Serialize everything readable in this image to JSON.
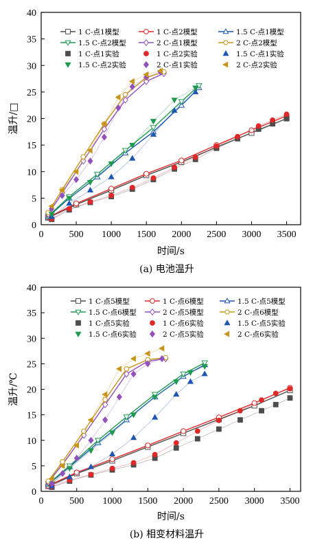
{
  "colors": {
    "c1": "#4d4d4d",
    "c2": "#e02828",
    "c3": "#1f57b3",
    "c4": "#1e9a4f",
    "c5": "#9250bd",
    "c6": "#c89518"
  },
  "chart_data": [
    {
      "type": "line",
      "caption": "(a) 电池温升",
      "xlabel": "时间/s",
      "ylabel": "温升/□",
      "xlim": [
        0,
        3700
      ],
      "ylim": [
        0,
        40
      ],
      "xticks": [
        0,
        500,
        1000,
        1500,
        2000,
        2500,
        3000,
        3500
      ],
      "yticks": [
        0,
        5,
        10,
        15,
        20,
        25,
        30,
        35,
        40
      ],
      "grid": false,
      "legend_position": "top",
      "series": [
        {
          "name": "1 C-点1模型",
          "kind": "model",
          "color": "c1",
          "marker": "square",
          "x": [
            100,
            500,
            1000,
            1500,
            2000,
            2500,
            3000,
            3500
          ],
          "y": [
            1.3,
            3.8,
            6.5,
            9.3,
            11.8,
            14.6,
            17.3,
            20.0
          ]
        },
        {
          "name": "1 C-点2模型",
          "kind": "model",
          "color": "c2",
          "marker": "circle",
          "x": [
            100,
            500,
            1000,
            1500,
            2000,
            2500,
            3000,
            3500
          ],
          "y": [
            1.4,
            4.0,
            6.8,
            9.6,
            12.1,
            15.0,
            17.8,
            20.5
          ]
        },
        {
          "name": "1.5 C-点1模型",
          "kind": "model",
          "color": "c3",
          "marker": "triangle-up",
          "x": [
            100,
            400,
            800,
            1200,
            1600,
            2000,
            2250
          ],
          "y": [
            1.5,
            5.0,
            9.0,
            13.5,
            17.5,
            22.5,
            25.8
          ]
        },
        {
          "name": "1.5 C-点2模型",
          "kind": "model",
          "color": "c4",
          "marker": "triangle-down",
          "x": [
            100,
            400,
            800,
            1200,
            1600,
            2000,
            2250
          ],
          "y": [
            1.6,
            5.3,
            9.5,
            14.0,
            18.3,
            23.2,
            26.2
          ]
        },
        {
          "name": "2 C-点1模型",
          "kind": "model",
          "color": "c5",
          "marker": "diamond",
          "x": [
            100,
            300,
            600,
            900,
            1200,
            1500,
            1750
          ],
          "y": [
            2.0,
            6.0,
            12.0,
            18.0,
            23.5,
            27.0,
            28.5
          ]
        },
        {
          "name": "2 C-点2模型",
          "kind": "model",
          "color": "c6",
          "marker": "hexagon",
          "x": [
            100,
            300,
            600,
            900,
            1200,
            1500,
            1750
          ],
          "y": [
            2.3,
            6.6,
            12.8,
            19.0,
            24.5,
            27.7,
            28.8
          ]
        },
        {
          "name": "1 C-点1实验",
          "kind": "exp",
          "color": "c1",
          "marker": "square",
          "x": [
            150,
            400,
            700,
            1000,
            1300,
            1600,
            1900,
            2200,
            2500,
            2800,
            3100,
            3300,
            3500
          ],
          "y": [
            1.0,
            2.8,
            4.2,
            5.3,
            6.7,
            8.5,
            10.5,
            12.3,
            14.4,
            16.2,
            18.0,
            19.0,
            20.0
          ]
        },
        {
          "name": "1 C-点2实验",
          "kind": "exp",
          "color": "c2",
          "marker": "circle",
          "x": [
            150,
            400,
            700,
            1000,
            1300,
            1600,
            1900,
            2200,
            2500,
            2800,
            3100,
            3300,
            3500
          ],
          "y": [
            1.1,
            3.0,
            4.3,
            5.5,
            7.0,
            8.8,
            10.8,
            12.7,
            14.8,
            16.6,
            18.6,
            19.7,
            20.8
          ]
        },
        {
          "name": "1.5 C-点1实验",
          "kind": "exp",
          "color": "c3",
          "marker": "triangle-up",
          "x": [
            150,
            400,
            700,
            1000,
            1300,
            1600,
            1900,
            2200
          ],
          "y": [
            1.5,
            4.0,
            6.5,
            9.0,
            12.5,
            17.0,
            21.5,
            25.0
          ]
        },
        {
          "name": "1.5 C-点2实验",
          "kind": "exp",
          "color": "c4",
          "marker": "triangle-down",
          "x": [
            150,
            400,
            700,
            1000,
            1300,
            1600,
            1900,
            2200
          ],
          "y": [
            2.0,
            5.0,
            8.0,
            11.5,
            15.0,
            19.5,
            23.5,
            25.8
          ]
        },
        {
          "name": "2 C-点1实验",
          "kind": "exp",
          "color": "c5",
          "marker": "diamond",
          "x": [
            150,
            300,
            500,
            700,
            900,
            1100,
            1300,
            1500,
            1700
          ],
          "y": [
            3.0,
            5.5,
            8.5,
            12.0,
            16.5,
            22.0,
            26.0,
            27.8,
            28.8
          ]
        },
        {
          "name": "2 C-点2实验",
          "kind": "exp",
          "color": "c6",
          "marker": "triangle-left",
          "x": [
            150,
            300,
            500,
            700,
            900,
            1100,
            1300,
            1500,
            1700
          ],
          "y": [
            3.5,
            6.5,
            10.0,
            14.0,
            19.0,
            24.0,
            27.0,
            28.3,
            29.0
          ]
        }
      ]
    },
    {
      "type": "line",
      "caption": "(b) 相变材料温升",
      "xlabel": "时间/s",
      "ylabel": "温升/℃",
      "xlim": [
        0,
        3650
      ],
      "ylim": [
        0,
        40
      ],
      "xticks": [
        0,
        500,
        1000,
        1500,
        2000,
        2500,
        3000,
        3500
      ],
      "yticks": [
        0,
        5,
        10,
        15,
        20,
        25,
        30,
        35,
        40
      ],
      "grid": false,
      "legend_position": "top",
      "series": [
        {
          "name": "1 C-点5模型",
          "kind": "model",
          "color": "c1",
          "marker": "square",
          "x": [
            100,
            500,
            1000,
            1500,
            2000,
            2500,
            3000,
            3500
          ],
          "y": [
            1.0,
            3.5,
            6.0,
            8.7,
            11.4,
            14.1,
            16.8,
            19.8
          ]
        },
        {
          "name": "1 C-点6模型",
          "kind": "model",
          "color": "c2",
          "marker": "circle",
          "x": [
            100,
            500,
            1000,
            1500,
            2000,
            2500,
            3000,
            3500
          ],
          "y": [
            1.1,
            3.7,
            6.3,
            9.0,
            11.8,
            14.5,
            17.3,
            20.3
          ]
        },
        {
          "name": "1.5 C-点5模型",
          "kind": "model",
          "color": "c3",
          "marker": "triangle-up",
          "x": [
            100,
            400,
            800,
            1200,
            1600,
            2000,
            2300
          ],
          "y": [
            1.4,
            4.8,
            9.5,
            14.0,
            18.5,
            22.5,
            24.8
          ]
        },
        {
          "name": "1.5 C-点6模型",
          "kind": "model",
          "color": "c4",
          "marker": "triangle-down",
          "x": [
            100,
            400,
            800,
            1200,
            1600,
            2000,
            2300
          ],
          "y": [
            1.5,
            5.0,
            10.0,
            14.6,
            19.0,
            23.0,
            25.2
          ]
        },
        {
          "name": "2 C-点5模型",
          "kind": "model",
          "color": "c5",
          "marker": "diamond",
          "x": [
            100,
            300,
            600,
            900,
            1200,
            1500,
            1750
          ],
          "y": [
            1.8,
            5.3,
            11.0,
            17.0,
            23.0,
            25.5,
            26.0
          ]
        },
        {
          "name": "2 C-点6模型",
          "kind": "model",
          "color": "c6",
          "marker": "hexagon",
          "x": [
            100,
            300,
            600,
            900,
            1200,
            1500,
            1750
          ],
          "y": [
            2.0,
            5.8,
            11.8,
            18.0,
            24.0,
            25.8,
            26.2
          ]
        },
        {
          "name": "1 C-点5实验",
          "kind": "exp",
          "color": "c1",
          "marker": "square",
          "x": [
            150,
            400,
            700,
            1000,
            1300,
            1600,
            1900,
            2200,
            2500,
            2800,
            3100,
            3300,
            3500
          ],
          "y": [
            0.8,
            2.0,
            3.2,
            4.2,
            5.2,
            6.5,
            8.5,
            10.3,
            12.2,
            14.0,
            15.8,
            17.0,
            18.3
          ]
        },
        {
          "name": "1 C-点6实验",
          "kind": "exp",
          "color": "c2",
          "marker": "circle",
          "x": [
            150,
            400,
            700,
            1000,
            1300,
            1600,
            1900,
            2200,
            2500,
            2800,
            3100,
            3300,
            3500
          ],
          "y": [
            0.9,
            2.2,
            3.3,
            4.5,
            5.6,
            7.2,
            9.5,
            11.8,
            13.9,
            15.8,
            17.9,
            19.2,
            20.1
          ]
        },
        {
          "name": "1.5 C-点5实验",
          "kind": "exp",
          "color": "c3",
          "marker": "triangle-up",
          "x": [
            150,
            400,
            700,
            1000,
            1300,
            1600,
            1900,
            2100,
            2300
          ],
          "y": [
            1.0,
            2.8,
            4.8,
            7.3,
            10.5,
            14.5,
            19.0,
            21.5,
            23.0
          ]
        },
        {
          "name": "1.5 C-点6实验",
          "kind": "exp",
          "color": "c4",
          "marker": "triangle-down",
          "x": [
            150,
            400,
            700,
            1000,
            1300,
            1600,
            1900,
            2100,
            2300
          ],
          "y": [
            1.5,
            4.5,
            8.0,
            11.5,
            15.0,
            18.5,
            21.5,
            23.3,
            24.5
          ]
        },
        {
          "name": "2 C-点5实验",
          "kind": "exp",
          "color": "c5",
          "marker": "diamond",
          "x": [
            150,
            300,
            500,
            700,
            900,
            1100,
            1300,
            1500,
            1700
          ],
          "y": [
            1.5,
            3.5,
            6.5,
            10.0,
            14.0,
            18.5,
            23.0,
            25.0,
            26.0
          ]
        },
        {
          "name": "2 C-点6实验",
          "kind": "exp",
          "color": "c6",
          "marker": "triangle-left",
          "x": [
            150,
            300,
            500,
            700,
            900,
            1100,
            1300,
            1500,
            1700
          ],
          "y": [
            2.5,
            5.0,
            9.0,
            14.0,
            19.0,
            24.0,
            26.0,
            27.0,
            28.0
          ]
        }
      ]
    }
  ]
}
